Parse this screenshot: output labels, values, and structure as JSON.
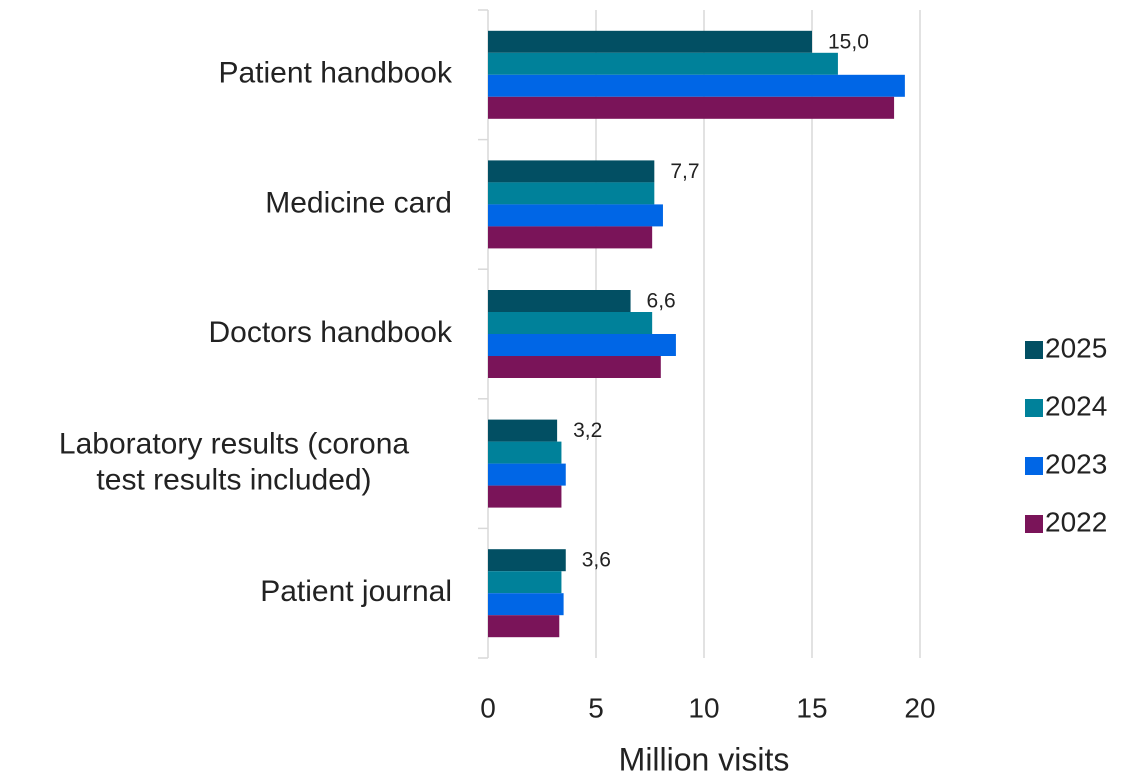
{
  "chart_data": {
    "type": "bar",
    "orientation": "horizontal",
    "x_label": "Million visits",
    "categories": [
      "Patient handbook",
      "Medicine card",
      "Doctors handbook",
      "Laboratory results (corona test results included)",
      "Patient journal"
    ],
    "series": [
      {
        "name": "2025",
        "color": "#024f63",
        "values": [
          15.0,
          7.7,
          6.6,
          3.2,
          3.6
        ],
        "value_labels": [
          "15,0",
          "7,7",
          "6,6",
          "3,2",
          "3,6"
        ]
      },
      {
        "name": "2024",
        "color": "#00819a",
        "values": [
          16.2,
          7.7,
          7.6,
          3.4,
          3.4
        ]
      },
      {
        "name": "2023",
        "color": "#0066e6",
        "values": [
          19.3,
          8.1,
          8.7,
          3.6,
          3.5
        ]
      },
      {
        "name": "2022",
        "color": "#7a1459",
        "values": [
          18.8,
          7.6,
          8.0,
          3.4,
          3.3
        ]
      }
    ],
    "xlim": [
      0,
      20
    ],
    "xticks": [
      0,
      5,
      10,
      15,
      20
    ],
    "grid": true,
    "legend": "right"
  }
}
